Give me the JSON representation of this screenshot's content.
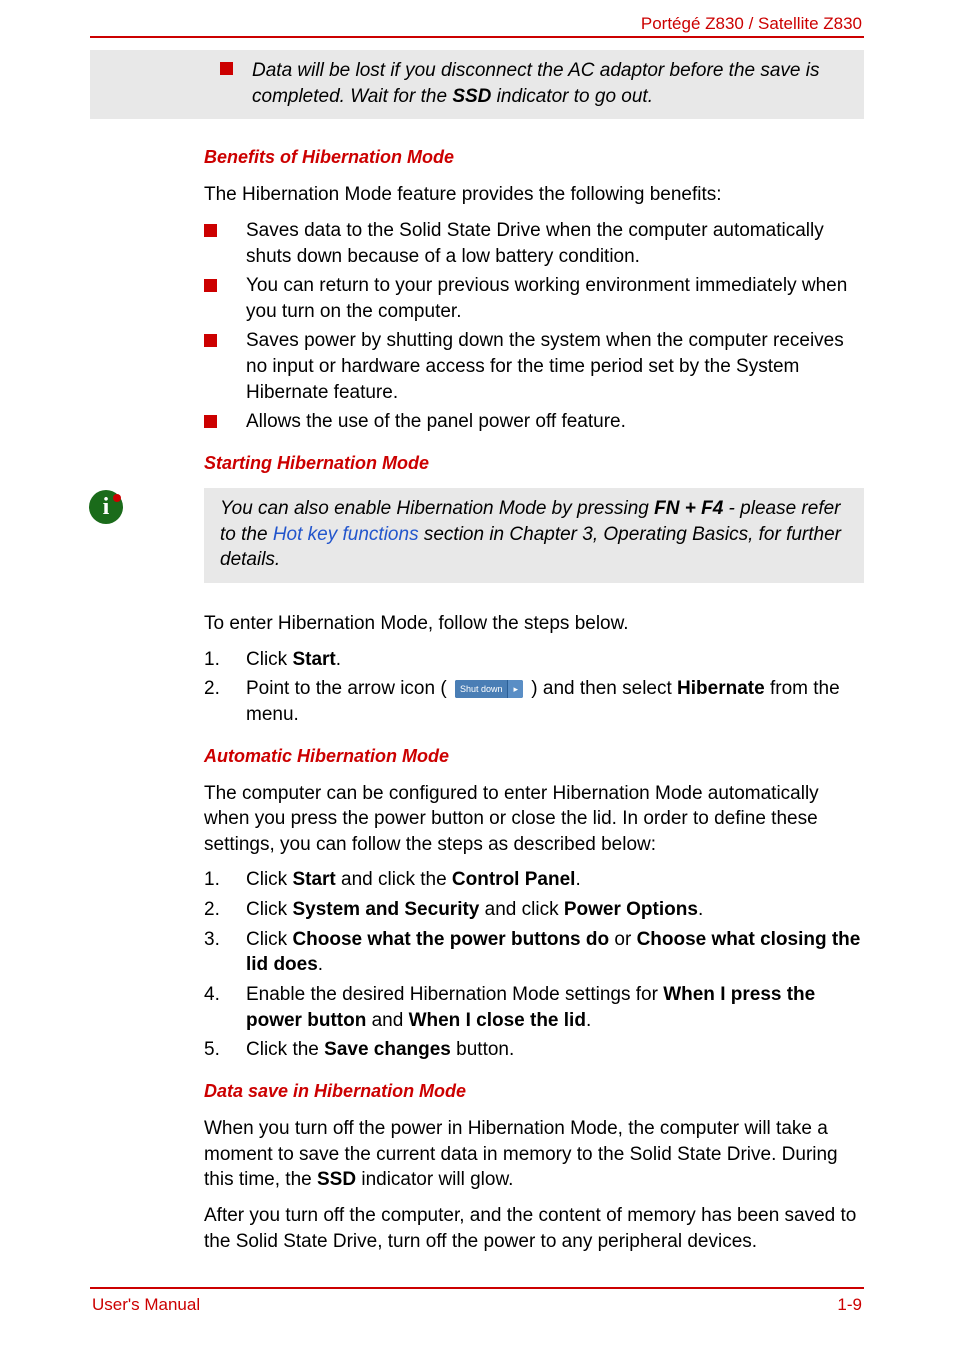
{
  "colors": {
    "accent": "#cc0000",
    "link": "#2255cc",
    "callout_bg": "#e8e8e8",
    "info_icon": "#1a6b1a",
    "shutdown_bg": "#4a7eb5",
    "shutdown_arrow_bg": "#5a8ec5",
    "text": "#000000"
  },
  "typography": {
    "body_fontsize": 19,
    "heading_fontsize": 18,
    "header_fontsize": 17,
    "footer_fontsize": 17
  },
  "header": {
    "product": "Portégé Z830 / Satellite Z830"
  },
  "callout1": {
    "text_prefix": "Data will be lost if you disconnect the AC adaptor before the save is completed. Wait for the ",
    "bold": "SSD",
    "text_suffix": " indicator to go out."
  },
  "section1": {
    "heading": "Benefits of Hibernation Mode",
    "intro": "The Hibernation Mode feature provides the following benefits:",
    "bullets": [
      "Saves data to the Solid State Drive when the computer automatically shuts down because of a low battery condition.",
      "You can return to your previous working environment immediately when you turn on the computer.",
      "Saves power by shutting down the system when the computer receives no input or hardware access for the time period set by the System Hibernate feature.",
      "Allows the use of the panel power off feature."
    ]
  },
  "section2": {
    "heading": "Starting Hibernation Mode"
  },
  "callout2": {
    "pre": "You can also enable Hibernation Mode by pressing ",
    "key": "FN + F4",
    "mid": " - please refer to the ",
    "link": "Hot key functions",
    "post": " section in Chapter 3, Operating Basics, for further details."
  },
  "steps1": {
    "intro": "To enter Hibernation Mode, follow the steps below.",
    "items": {
      "1": {
        "num": "1.",
        "pre": "Click ",
        "b1": "Start",
        "post": "."
      },
      "2": {
        "num": "2.",
        "pre": "Point to the arrow icon ( ",
        "btn_label": "Shut down",
        "btn_arrow": "▸",
        "mid": " ) and then select ",
        "b1": "Hibernate",
        "post": " from the menu."
      }
    }
  },
  "section3": {
    "heading": "Automatic Hibernation Mode",
    "intro": "The computer can be configured to enter Hibernation Mode automatically when you press the power button or close the lid. In order to define these settings, you can follow the steps as described below:",
    "items": {
      "1": {
        "num": "1.",
        "pre": "Click ",
        "b1": "Start",
        "mid": " and click the ",
        "b2": "Control Panel",
        "post": "."
      },
      "2": {
        "num": "2.",
        "pre": "Click ",
        "b1": "System and Security",
        "mid": " and click ",
        "b2": "Power Options",
        "post": "."
      },
      "3": {
        "num": "3.",
        "pre": "Click ",
        "b1": "Choose what the power buttons do",
        "mid": " or ",
        "b2": "Choose what closing the lid does",
        "post": "."
      },
      "4": {
        "num": "4.",
        "pre": "Enable the desired Hibernation Mode settings for ",
        "b1": "When I press the power button",
        "mid": " and ",
        "b2": "When I close the lid",
        "post": "."
      },
      "5": {
        "num": "5.",
        "pre": "Click the ",
        "b1": "Save changes",
        "post": " button."
      }
    }
  },
  "section4": {
    "heading": "Data save in Hibernation Mode",
    "p1_pre": "When you turn off the power in Hibernation Mode, the computer will take a moment to save the current data in memory to the Solid State Drive. During this time, the ",
    "p1_bold": "SSD",
    "p1_post": " indicator will glow.",
    "p2": "After you turn off the computer, and the content of memory has been saved to the Solid State Drive, turn off the power to any peripheral devices."
  },
  "footer": {
    "left": "User's Manual",
    "right": "1-9"
  }
}
